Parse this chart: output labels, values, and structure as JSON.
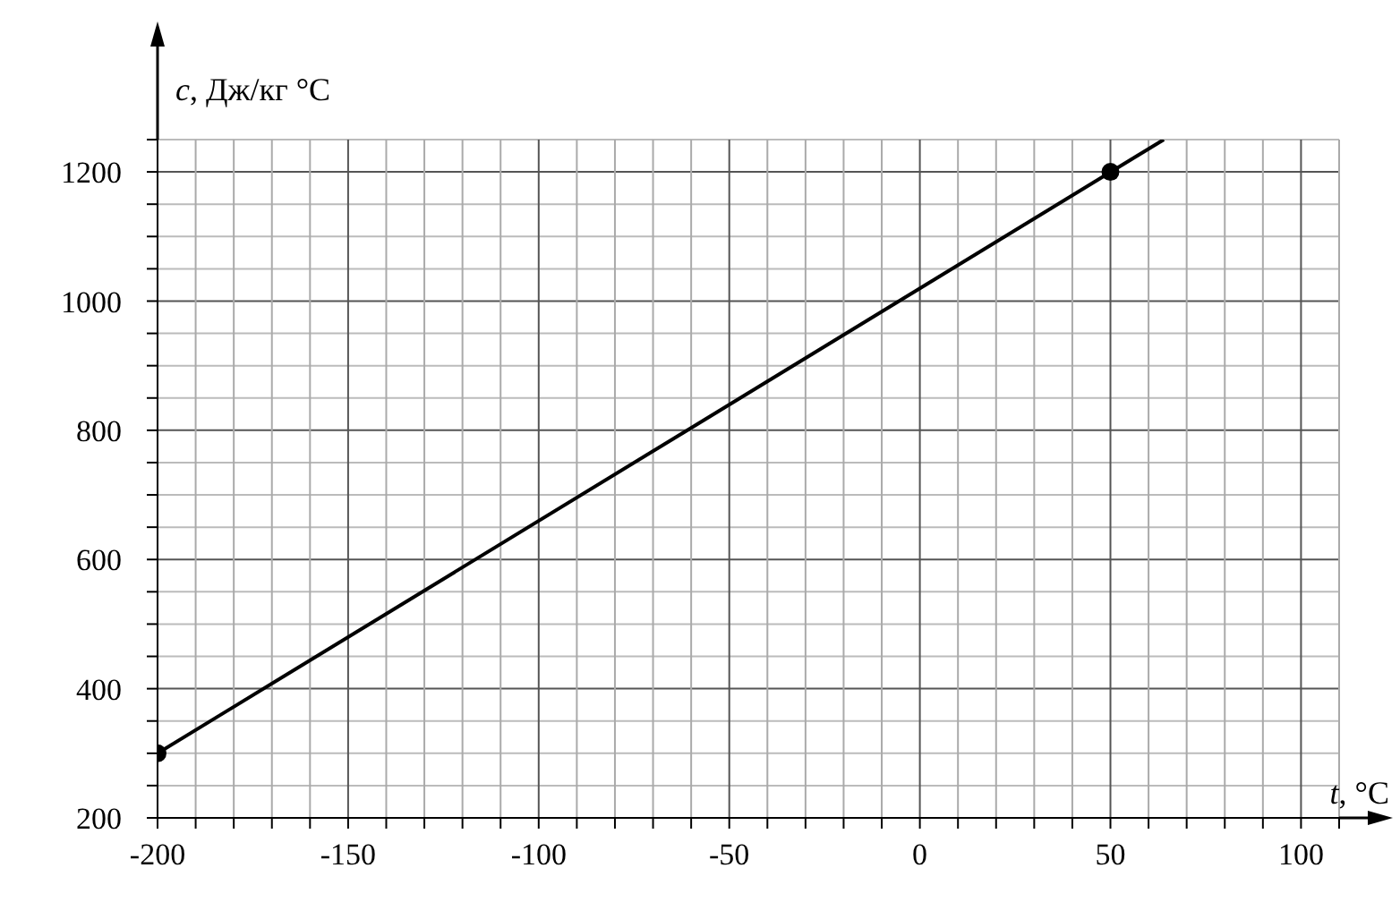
{
  "chart_data": {
    "type": "line",
    "xlabel": "t, °C",
    "ylabel": "c, Дж/кг °C",
    "xlim": [
      -200,
      110
    ],
    "ylim": [
      200,
      1250
    ],
    "xticks": [
      -200,
      {
        "value": -190,
        "label": null
      },
      {
        "value": -180,
        "label": null
      },
      {
        "value": -170,
        "label": null
      },
      {
        "value": -160,
        "label": null
      },
      -150,
      {
        "value": -140,
        "label": null
      },
      {
        "value": -130,
        "label": null
      },
      {
        "value": -120,
        "label": null
      },
      {
        "value": -110,
        "label": null
      },
      -100,
      {
        "value": -90,
        "label": null
      },
      {
        "value": -80,
        "label": null
      },
      {
        "value": -70,
        "label": null
      },
      {
        "value": -60,
        "label": null
      },
      -50,
      {
        "value": -40,
        "label": null
      },
      {
        "value": -30,
        "label": null
      },
      {
        "value": -20,
        "label": null
      },
      {
        "value": -10,
        "label": null
      },
      0,
      {
        "value": 10,
        "label": null
      },
      {
        "value": 20,
        "label": null
      },
      {
        "value": 30,
        "label": null
      },
      {
        "value": 40,
        "label": null
      },
      50,
      {
        "value": 60,
        "label": null
      },
      {
        "value": 70,
        "label": null
      },
      {
        "value": 80,
        "label": null
      },
      {
        "value": 90,
        "label": null
      },
      100,
      {
        "value": 110,
        "label": null
      }
    ],
    "yticks": [
      200,
      {
        "value": 250,
        "label": null
      },
      {
        "value": 300,
        "label": null
      },
      {
        "value": 350,
        "label": null
      },
      400,
      {
        "value": 450,
        "label": null
      },
      {
        "value": 500,
        "label": null
      },
      {
        "value": 550,
        "label": null
      },
      600,
      {
        "value": 650,
        "label": null
      },
      {
        "value": 700,
        "label": null
      },
      {
        "value": 750,
        "label": null
      },
      800,
      {
        "value": 850,
        "label": null
      },
      {
        "value": 900,
        "label": null
      },
      {
        "value": 950,
        "label": null
      },
      1000,
      {
        "value": 1050,
        "label": null
      },
      {
        "value": 1100,
        "label": null
      },
      {
        "value": 1150,
        "label": null
      },
      1200,
      {
        "value": 1250,
        "label": null
      }
    ],
    "grid": true,
    "series": [
      {
        "color": "#000000",
        "x": [
          -200,
          64
        ],
        "values": [
          300,
          1250
        ],
        "marker": "none"
      },
      {
        "type": "scatter",
        "color": "#000000",
        "x": [
          -200,
          50
        ],
        "values": [
          300,
          1200
        ],
        "marker": "circle"
      }
    ]
  }
}
